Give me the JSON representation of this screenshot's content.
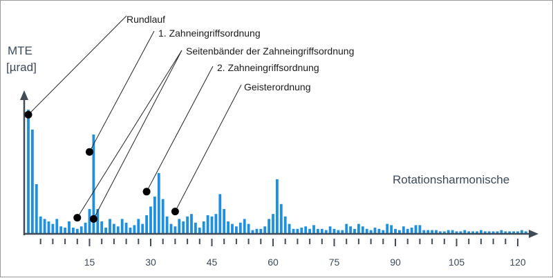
{
  "chart_data": {
    "type": "bar",
    "ylabel": [
      "MTE",
      "[µrad]"
    ],
    "xlabel": "Rotationsharmonische",
    "x_ticks": [
      15,
      30,
      45,
      60,
      75,
      90,
      105,
      120
    ],
    "xlim": [
      0,
      120
    ],
    "ylim": [
      0,
      100
    ],
    "bar_color": "#1e90e0",
    "axis_color": "#3f4b57",
    "values": [
      100,
      84,
      40,
      14,
      12,
      10,
      8,
      12,
      6,
      5,
      10,
      5,
      4,
      6,
      9,
      20,
      80,
      20,
      10,
      5,
      12,
      8,
      6,
      12,
      9,
      5,
      7,
      12,
      8,
      15,
      22,
      30,
      49,
      28,
      14,
      8,
      6,
      12,
      10,
      14,
      16,
      9,
      5,
      10,
      15,
      14,
      16,
      32,
      20,
      10,
      8,
      6,
      9,
      12,
      8,
      3,
      4,
      4,
      6,
      12,
      16,
      44,
      24,
      14,
      8,
      4,
      4,
      5,
      6,
      4,
      7,
      4,
      4,
      3,
      6,
      4,
      3,
      3,
      8,
      6,
      4,
      8,
      6,
      4,
      3,
      5,
      4,
      3,
      8,
      7,
      4,
      3,
      6,
      4,
      5,
      7,
      7,
      3,
      3,
      3,
      3,
      2,
      2,
      3,
      3,
      2,
      2,
      3,
      2,
      2,
      2,
      3,
      2,
      2,
      2,
      2,
      3,
      2,
      2,
      2,
      2,
      3,
      2
    ],
    "annotations": [
      {
        "text": "Rundlauf",
        "target_x": 0,
        "target_y": 96
      },
      {
        "text": "1. Zahneingriffsordnung",
        "target_x": 15,
        "target_y": 66
      },
      {
        "text": "Seitenbänder der Zahneingriffsordnung",
        "targets": [
          {
            "x": 12,
            "y": 13
          },
          {
            "x": 16,
            "y": 12
          }
        ]
      },
      {
        "text": "2. Zahneingriffsordnung",
        "target_x": 29,
        "target_y": 34
      },
      {
        "text": "Geisterordnung",
        "target_x": 36,
        "target_y": 18
      }
    ]
  }
}
